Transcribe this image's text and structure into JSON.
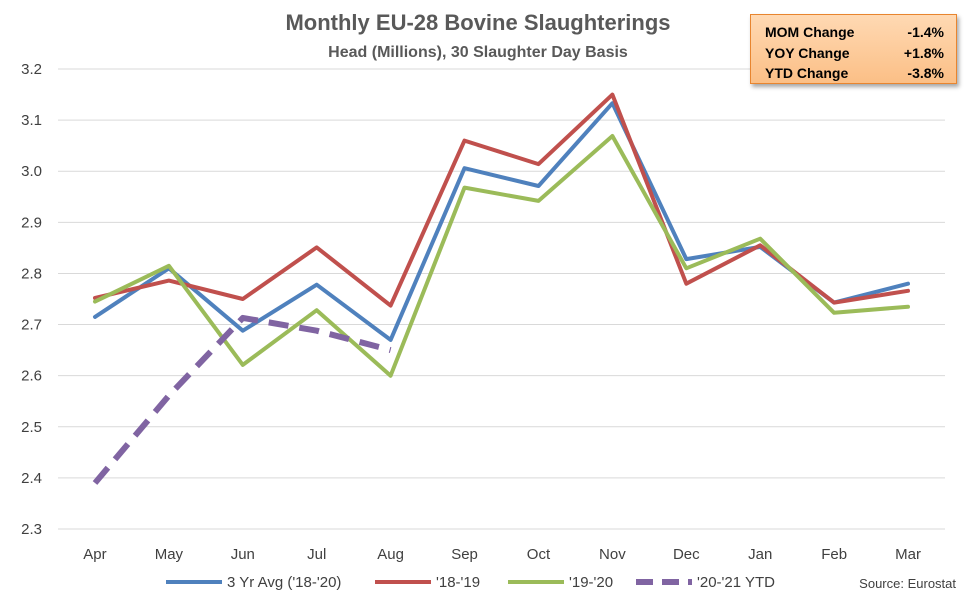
{
  "chart_data": {
    "type": "line",
    "title": "Monthly EU-28 Bovine Slaughterings",
    "subtitle": "Head (Millions), 30 Slaughter Day Basis",
    "categories": [
      "Apr",
      "May",
      "Jun",
      "Jul",
      "Aug",
      "Sep",
      "Oct",
      "Nov",
      "Dec",
      "Jan",
      "Feb",
      "Mar"
    ],
    "ylim": [
      2.3,
      3.2
    ],
    "yticks": [
      2.3,
      2.4,
      2.5,
      2.6,
      2.7,
      2.8,
      2.9,
      3.0,
      3.1,
      3.2
    ],
    "ytick_labels": [
      "2.3",
      "2.4",
      "2.5",
      "2.6",
      "2.7",
      "2.8",
      "2.9",
      "3.0",
      "3.1",
      "3.2"
    ],
    "grid": true,
    "legend_position": "bottom",
    "series": [
      {
        "name": "3 Yr Avg ('18-'20)",
        "color": "#4f81bd",
        "dashed": false,
        "values": [
          2.715,
          2.81,
          2.688,
          2.778,
          2.67,
          3.006,
          2.971,
          3.133,
          2.828,
          2.852,
          2.743,
          2.78
        ]
      },
      {
        "name": "'18-'19",
        "color": "#c0504d",
        "dashed": false,
        "values": [
          2.752,
          2.786,
          2.75,
          2.851,
          2.737,
          3.06,
          3.014,
          3.15,
          2.78,
          2.855,
          2.743,
          2.766
        ]
      },
      {
        "name": "'19-'20",
        "color": "#9bbb59",
        "dashed": false,
        "values": [
          2.745,
          2.815,
          2.621,
          2.728,
          2.6,
          2.968,
          2.942,
          3.069,
          2.81,
          2.868,
          2.723,
          2.735
        ]
      },
      {
        "name": "'20-'21 YTD",
        "color": "#8064a2",
        "dashed": true,
        "values": [
          2.39,
          2.561,
          2.713,
          2.688,
          2.65,
          null,
          null,
          null,
          null,
          null,
          null,
          null
        ]
      }
    ],
    "annotation_source": "Source: Eurostat"
  },
  "stats_box": {
    "rows": [
      {
        "label": "MOM Change",
        "value": "-1.4%"
      },
      {
        "label": "YOY Change",
        "value": "+1.8%"
      },
      {
        "label": "YTD Change",
        "value": "-3.8%"
      }
    ]
  }
}
